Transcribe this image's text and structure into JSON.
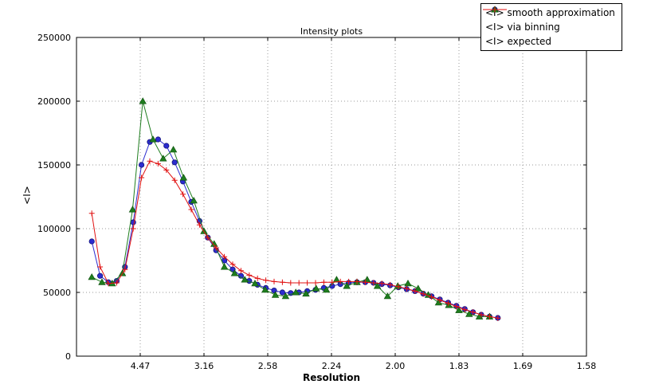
{
  "chart_data": {
    "type": "line",
    "title": "Intensity plots",
    "xlabel": "Resolution",
    "ylabel": "<I>",
    "grid": true,
    "grid_color": "#999999",
    "background_color": "#ffffff",
    "legend_position": "upper right",
    "x_axis": {
      "min": 0.0,
      "max": 0.4,
      "tick_positions": [
        0.05,
        0.1,
        0.15,
        0.2,
        0.25,
        0.3,
        0.35,
        0.4
      ],
      "tick_labels": [
        "4.47",
        "3.16",
        "2.58",
        "2.24",
        "2.00",
        "1.83",
        "1.69",
        "1.58"
      ]
    },
    "y_axis": {
      "min": 0,
      "max": 250000,
      "ticks": [
        0,
        50000,
        100000,
        150000,
        200000,
        250000
      ]
    },
    "series": [
      {
        "name": "<I> smooth approximation",
        "color": "#2c2cd0",
        "edge_color": "#14147a",
        "marker": "circle",
        "x": [
          0.012,
          0.0185,
          0.025,
          0.0315,
          0.038,
          0.0445,
          0.051,
          0.0575,
          0.064,
          0.0705,
          0.077,
          0.0835,
          0.09,
          0.0965,
          0.103,
          0.1095,
          0.116,
          0.1225,
          0.129,
          0.1355,
          0.142,
          0.1485,
          0.155,
          0.1615,
          0.168,
          0.1745,
          0.181,
          0.1875,
          0.194,
          0.2005,
          0.207,
          0.2135,
          0.22,
          0.2265,
          0.233,
          0.2395,
          0.246,
          0.2525,
          0.259,
          0.2655,
          0.272,
          0.2785,
          0.285,
          0.2915,
          0.298,
          0.3045,
          0.311,
          0.3175,
          0.324,
          0.3305
        ],
        "y": [
          90000,
          63000,
          58000,
          59000,
          70000,
          105000,
          150000,
          168000,
          170000,
          165000,
          152000,
          137000,
          121000,
          106000,
          93000,
          83000,
          75000,
          68000,
          63000,
          59000,
          56000,
          53500,
          51500,
          50000,
          49500,
          50000,
          51000,
          52000,
          53500,
          55000,
          56500,
          57500,
          58000,
          58000,
          57500,
          56500,
          55500,
          54000,
          52500,
          51000,
          49000,
          47000,
          44500,
          42000,
          39500,
          37000,
          34500,
          32500,
          31000,
          30000
        ]
      },
      {
        "name": "<I> via binning",
        "color": "#1e7d1e",
        "edge_color": "#0e4f0e",
        "marker": "triangle",
        "x": [
          0.012,
          0.02,
          0.028,
          0.036,
          0.044,
          0.052,
          0.06,
          0.068,
          0.076,
          0.084,
          0.092,
          0.1,
          0.108,
          0.116,
          0.124,
          0.132,
          0.14,
          0.148,
          0.156,
          0.164,
          0.172,
          0.18,
          0.188,
          0.196,
          0.204,
          0.212,
          0.22,
          0.228,
          0.236,
          0.244,
          0.252,
          0.26,
          0.268,
          0.276,
          0.284,
          0.292,
          0.3,
          0.308,
          0.316,
          0.324
        ],
        "y": [
          62000,
          58000,
          57000,
          65000,
          115000,
          200000,
          170000,
          155000,
          162000,
          140000,
          122000,
          98000,
          88000,
          70000,
          65000,
          60000,
          57000,
          52000,
          48000,
          47000,
          50000,
          49000,
          53000,
          52000,
          60000,
          55000,
          58000,
          60000,
          55000,
          47000,
          55000,
          57000,
          53000,
          48000,
          42000,
          40000,
          36000,
          33000,
          31000,
          31000
        ]
      },
      {
        "name": "<I> expected",
        "color": "#e01010",
        "edge_color": "#e01010",
        "marker": "plus",
        "x": [
          0.012,
          0.0185,
          0.025,
          0.0315,
          0.038,
          0.0445,
          0.051,
          0.0575,
          0.064,
          0.0705,
          0.077,
          0.0835,
          0.09,
          0.0965,
          0.103,
          0.1095,
          0.116,
          0.1225,
          0.129,
          0.1355,
          0.142,
          0.1485,
          0.155,
          0.1615,
          0.168,
          0.1745,
          0.181,
          0.1875,
          0.194,
          0.2005,
          0.207,
          0.2135,
          0.22,
          0.2265,
          0.233,
          0.2395,
          0.246,
          0.2525,
          0.259,
          0.2655,
          0.272,
          0.2785,
          0.285,
          0.2915,
          0.298,
          0.3045,
          0.311,
          0.3175,
          0.324,
          0.3305
        ],
        "y": [
          112000,
          70000,
          57000,
          57500,
          68000,
          100000,
          140000,
          153000,
          151000,
          146000,
          138000,
          127000,
          115000,
          103000,
          93000,
          85000,
          78000,
          72000,
          67000,
          63500,
          61000,
          59500,
          58500,
          58000,
          57500,
          57500,
          57500,
          57500,
          58000,
          58000,
          58500,
          58500,
          58500,
          58000,
          57500,
          57000,
          56000,
          54500,
          53000,
          51000,
          48800,
          46500,
          44000,
          41500,
          39000,
          36500,
          34500,
          32500,
          31000,
          29800
        ]
      }
    ]
  }
}
